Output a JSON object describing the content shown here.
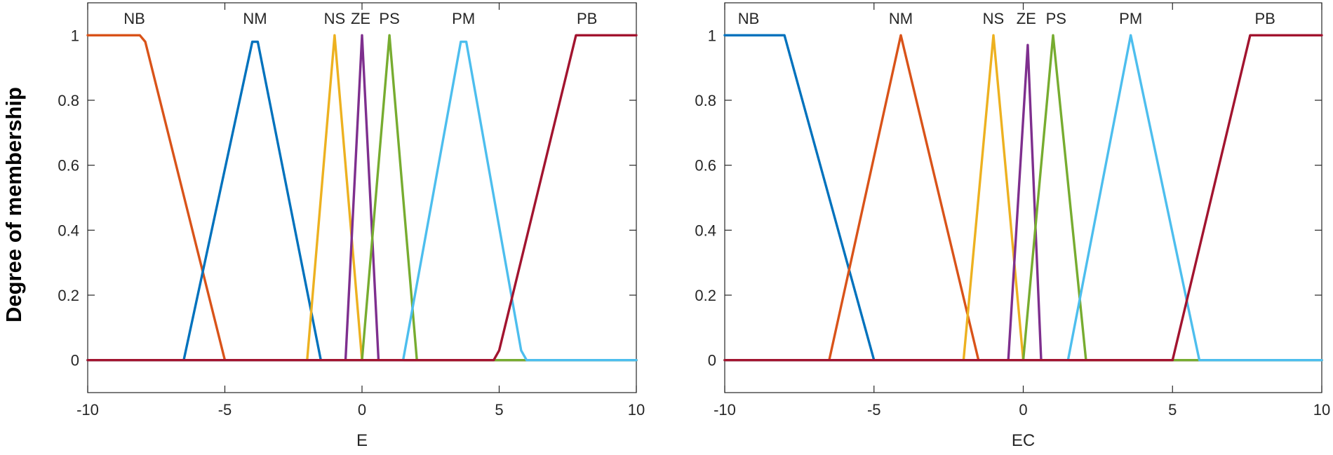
{
  "shared": {
    "ylabel": "Degree of membership"
  },
  "chart_data": [
    {
      "type": "line",
      "title": "",
      "xlabel": "E",
      "ylabel": "Degree of membership",
      "xlim": [
        -10,
        10
      ],
      "ylim": [
        -0.1,
        1.1
      ],
      "xticks": [
        -10,
        -5,
        0,
        5,
        10
      ],
      "yticks": [
        0,
        0.2,
        0.4,
        0.6,
        0.8,
        1
      ],
      "xtick_labels": [
        "-10",
        "-5",
        "0",
        "5",
        "10"
      ],
      "ytick_labels": [
        "0",
        "0.2",
        "0.4",
        "0.6",
        "0.8",
        "1"
      ],
      "grid": false,
      "series": [
        {
          "name": "NB",
          "color": "#D95319",
          "x": [
            -10,
            -8.1,
            -7.9,
            -5,
            10
          ],
          "y": [
            1,
            1,
            0.98,
            0,
            0
          ],
          "label_x": -8.3
        },
        {
          "name": "NM",
          "color": "#0072BD",
          "x": [
            -10,
            -6.5,
            -4,
            -3.8,
            -1.5,
            10
          ],
          "y": [
            0,
            0,
            0.98,
            0.98,
            0,
            0
          ],
          "label_x": -3.9
        },
        {
          "name": "NS",
          "color": "#EDB120",
          "x": [
            -10,
            -2.0,
            -1.0,
            0,
            10
          ],
          "y": [
            0,
            0,
            1,
            0,
            0
          ],
          "label_x": -1.0
        },
        {
          "name": "ZE",
          "color": "#7E2F8E",
          "x": [
            -10,
            -0.6,
            0,
            0.6,
            10
          ],
          "y": [
            0,
            0,
            1,
            0,
            0
          ],
          "label_x": -0.05
        },
        {
          "name": "PS",
          "color": "#77AC30",
          "x": [
            -10,
            0,
            1.0,
            2.0,
            10
          ],
          "y": [
            0,
            0,
            1,
            0,
            0
          ],
          "label_x": 1.0
        },
        {
          "name": "PM",
          "color": "#4DBEEE",
          "x": [
            -10,
            1.5,
            3.6,
            3.8,
            5.8,
            6.0,
            10
          ],
          "y": [
            0,
            0,
            0.98,
            0.98,
            0.03,
            0,
            0
          ],
          "label_x": 3.7
        },
        {
          "name": "PB",
          "color": "#A2142F",
          "x": [
            -10,
            4.8,
            5.0,
            7.8,
            10
          ],
          "y": [
            0,
            0,
            0.03,
            1,
            1
          ],
          "label_x": 8.2
        }
      ]
    },
    {
      "type": "line",
      "title": "",
      "xlabel": "EC",
      "ylabel": "",
      "xlim": [
        -10,
        10
      ],
      "ylim": [
        -0.1,
        1.1
      ],
      "xticks": [
        -10,
        -5,
        0,
        5,
        10
      ],
      "yticks": [
        0,
        0.2,
        0.4,
        0.6,
        0.8,
        1
      ],
      "xtick_labels": [
        "-10",
        "-5",
        "0",
        "5",
        "10"
      ],
      "ytick_labels": [
        "0",
        "0.2",
        "0.4",
        "0.6",
        "0.8",
        "1"
      ],
      "grid": false,
      "series": [
        {
          "name": "NB",
          "color": "#0072BD",
          "x": [
            -10,
            -8.0,
            -5.0,
            10
          ],
          "y": [
            1,
            1,
            0,
            0
          ],
          "label_x": -9.2
        },
        {
          "name": "NM",
          "color": "#D95319",
          "x": [
            -10,
            -6.5,
            -4.1,
            -1.5,
            10
          ],
          "y": [
            0,
            0,
            1,
            0,
            0
          ],
          "label_x": -4.1
        },
        {
          "name": "NS",
          "color": "#EDB120",
          "x": [
            -10,
            -2.0,
            -1.0,
            0,
            10
          ],
          "y": [
            0,
            0,
            1,
            0,
            0
          ],
          "label_x": -1.0
        },
        {
          "name": "ZE",
          "color": "#7E2F8E",
          "x": [
            -10,
            -0.5,
            0.15,
            0.6,
            10
          ],
          "y": [
            0,
            0,
            0.97,
            0,
            0
          ],
          "label_x": 0.1
        },
        {
          "name": "PS",
          "color": "#77AC30",
          "x": [
            -10,
            0,
            1.0,
            2.1,
            10
          ],
          "y": [
            0,
            0,
            1,
            0,
            0
          ],
          "label_x": 1.1
        },
        {
          "name": "PM",
          "color": "#4DBEEE",
          "x": [
            -10,
            1.5,
            3.6,
            5.9,
            10
          ],
          "y": [
            0,
            0,
            1,
            0,
            0
          ],
          "label_x": 3.6
        },
        {
          "name": "PB",
          "color": "#A2142F",
          "x": [
            -10,
            5.0,
            7.6,
            10
          ],
          "y": [
            0,
            0,
            1,
            1
          ],
          "label_x": 8.1
        }
      ]
    }
  ]
}
